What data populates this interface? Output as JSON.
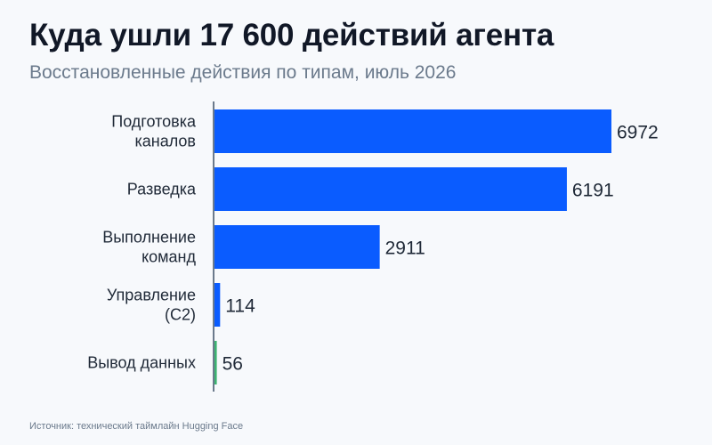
{
  "header": {
    "title": "Куда ушли 17 600 действий агента",
    "subtitle": "Восстановленные действия по типам, июль 2026"
  },
  "footer": {
    "source": "Источник: технический таймлайн Hugging Face"
  },
  "colors": {
    "primary_bar": "#0a5cff",
    "highlight_bar": "#3cb371",
    "axis": "#6b7a8c"
  },
  "chart_data": {
    "type": "bar",
    "orientation": "horizontal",
    "title": "Куда ушли 17 600 действий агента",
    "subtitle": "Восстановленные действия по типам, июль 2026",
    "categories": [
      [
        "Подготовка",
        "каналов"
      ],
      [
        "Разведка"
      ],
      [
        "Выполнение",
        "команд"
      ],
      [
        "Управление",
        "(C2)"
      ],
      [
        "Вывод данных"
      ]
    ],
    "values": [
      6972,
      6191,
      2911,
      114,
      56
    ],
    "highlight_index": 4,
    "xlim": [
      0,
      6972
    ],
    "grid": false,
    "legend": "none"
  }
}
